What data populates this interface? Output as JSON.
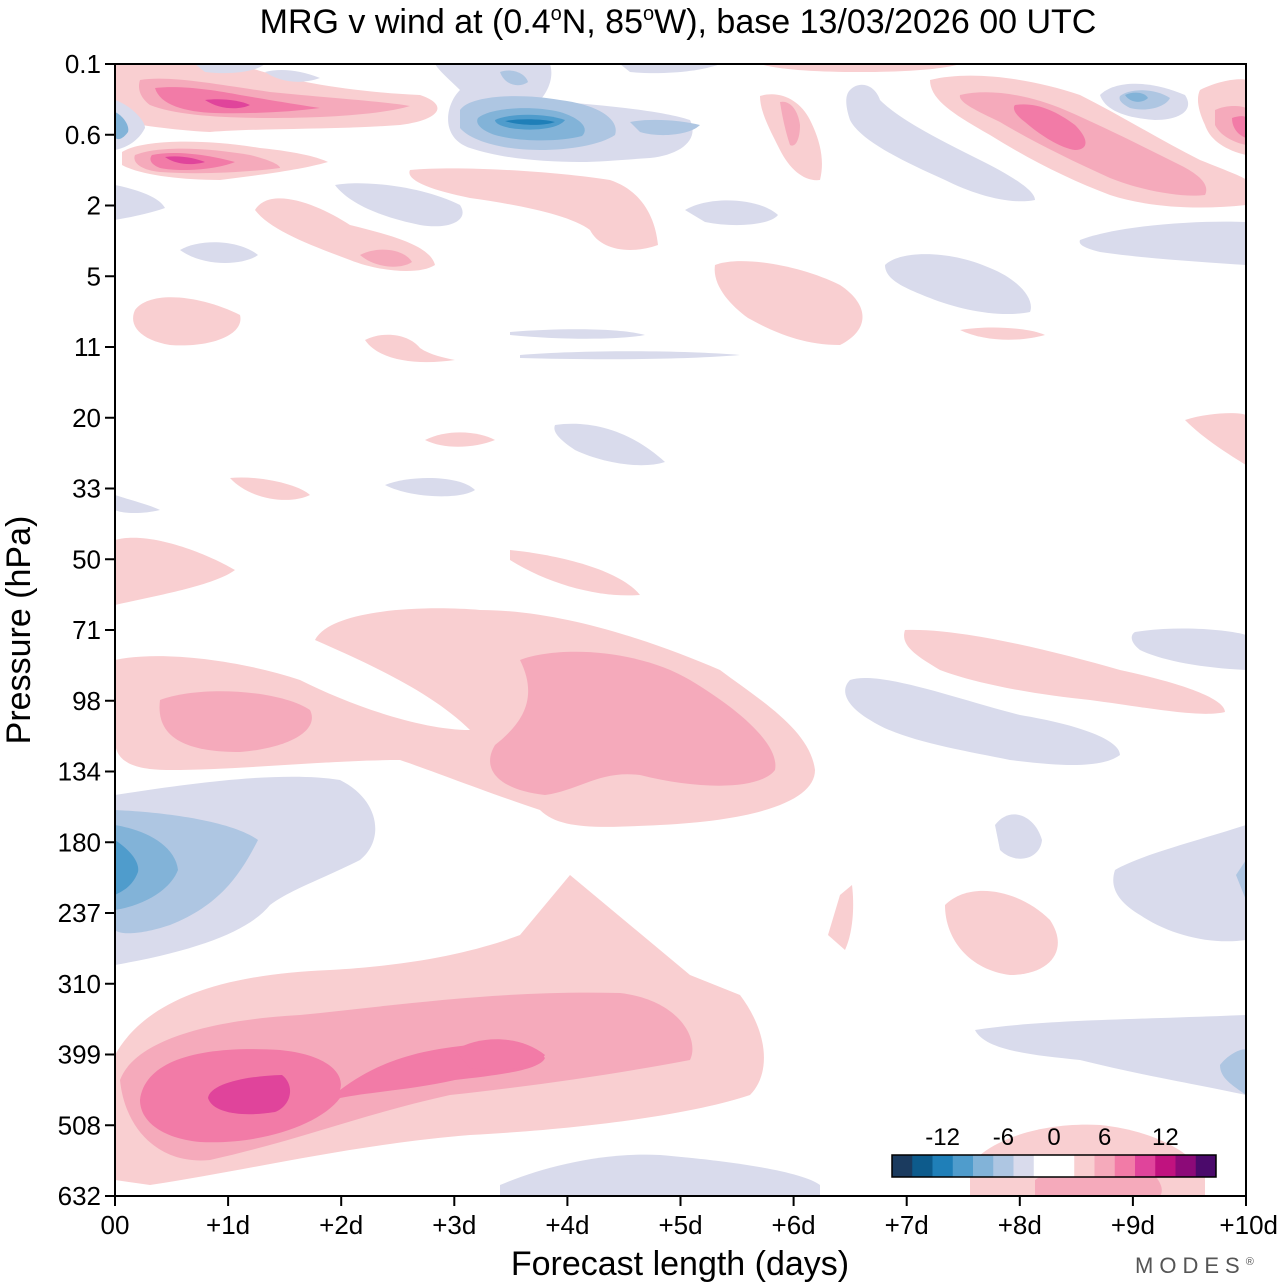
{
  "chart_data": {
    "type": "heatmap",
    "title": "MRG v wind at (0.4°N, 85°W),  base 13/03/2026  00 UTC",
    "title_parts": {
      "pre": "MRG v wind at (0.4",
      "deg1": "o",
      "mid": "N, 85",
      "deg2": "o",
      "post": "W),  base 13/03/2026  00 UTC"
    },
    "xlabel": "Forecast length (days)",
    "ylabel": "Pressure (hPa)",
    "x_ticks": [
      "00",
      "+1d",
      "+2d",
      "+3d",
      "+4d",
      "+5d",
      "+6d",
      "+7d",
      "+8d",
      "+9d",
      "+10d"
    ],
    "x_range_days": [
      0,
      10
    ],
    "y_ticks": [
      "0.1",
      "0.6",
      "2",
      "5",
      "11",
      "20",
      "33",
      "50",
      "71",
      "98",
      "134",
      "180",
      "237",
      "310",
      "399",
      "508",
      "632"
    ],
    "colorbar": {
      "tick_labels": [
        "-12",
        "-6",
        "0",
        "6",
        "12"
      ],
      "levels": [
        -16,
        -14,
        -12,
        -10,
        -8,
        -6,
        -4,
        -2,
        2,
        4,
        6,
        8,
        10,
        12,
        14,
        16
      ],
      "colors": [
        "#1b3b5f",
        "#0d5b8c",
        "#1f7fb8",
        "#4f9ccc",
        "#82b3d8",
        "#aec6e2",
        "#d9dbec",
        "#ffffff",
        "#ffffff",
        "#f9cfd1",
        "#f5aabb",
        "#f27ba7",
        "#e0449b",
        "#c0127f",
        "#8c0a78",
        "#4b0a6b"
      ]
    },
    "features": [
      {
        "name": "max-450hPa-day1",
        "x_day": 1.1,
        "level_hPa": 450,
        "value": 12
      },
      {
        "name": "jet-450hPa-day3.5",
        "x_day": 3.6,
        "level_hPa": 410,
        "value": 10
      },
      {
        "name": "min-200hPa-day0",
        "x_day": 0.0,
        "level_hPa": 200,
        "value": -10
      },
      {
        "name": "max-105hPa-day4.5",
        "x_day": 4.5,
        "level_hPa": 110,
        "value": 6
      },
      {
        "name": "min-0.6hPa-day3.7",
        "x_day": 3.7,
        "level_hPa": 0.6,
        "value": -12
      },
      {
        "name": "max-0.6hPa-day1",
        "x_day": 1.0,
        "level_hPa": 0.4,
        "value": 10
      },
      {
        "name": "max-0.6hPa-day8.5",
        "x_day": 8.5,
        "level_hPa": 0.5,
        "value": 8
      }
    ]
  },
  "branding": {
    "text": "MODES",
    "mark": "®"
  }
}
